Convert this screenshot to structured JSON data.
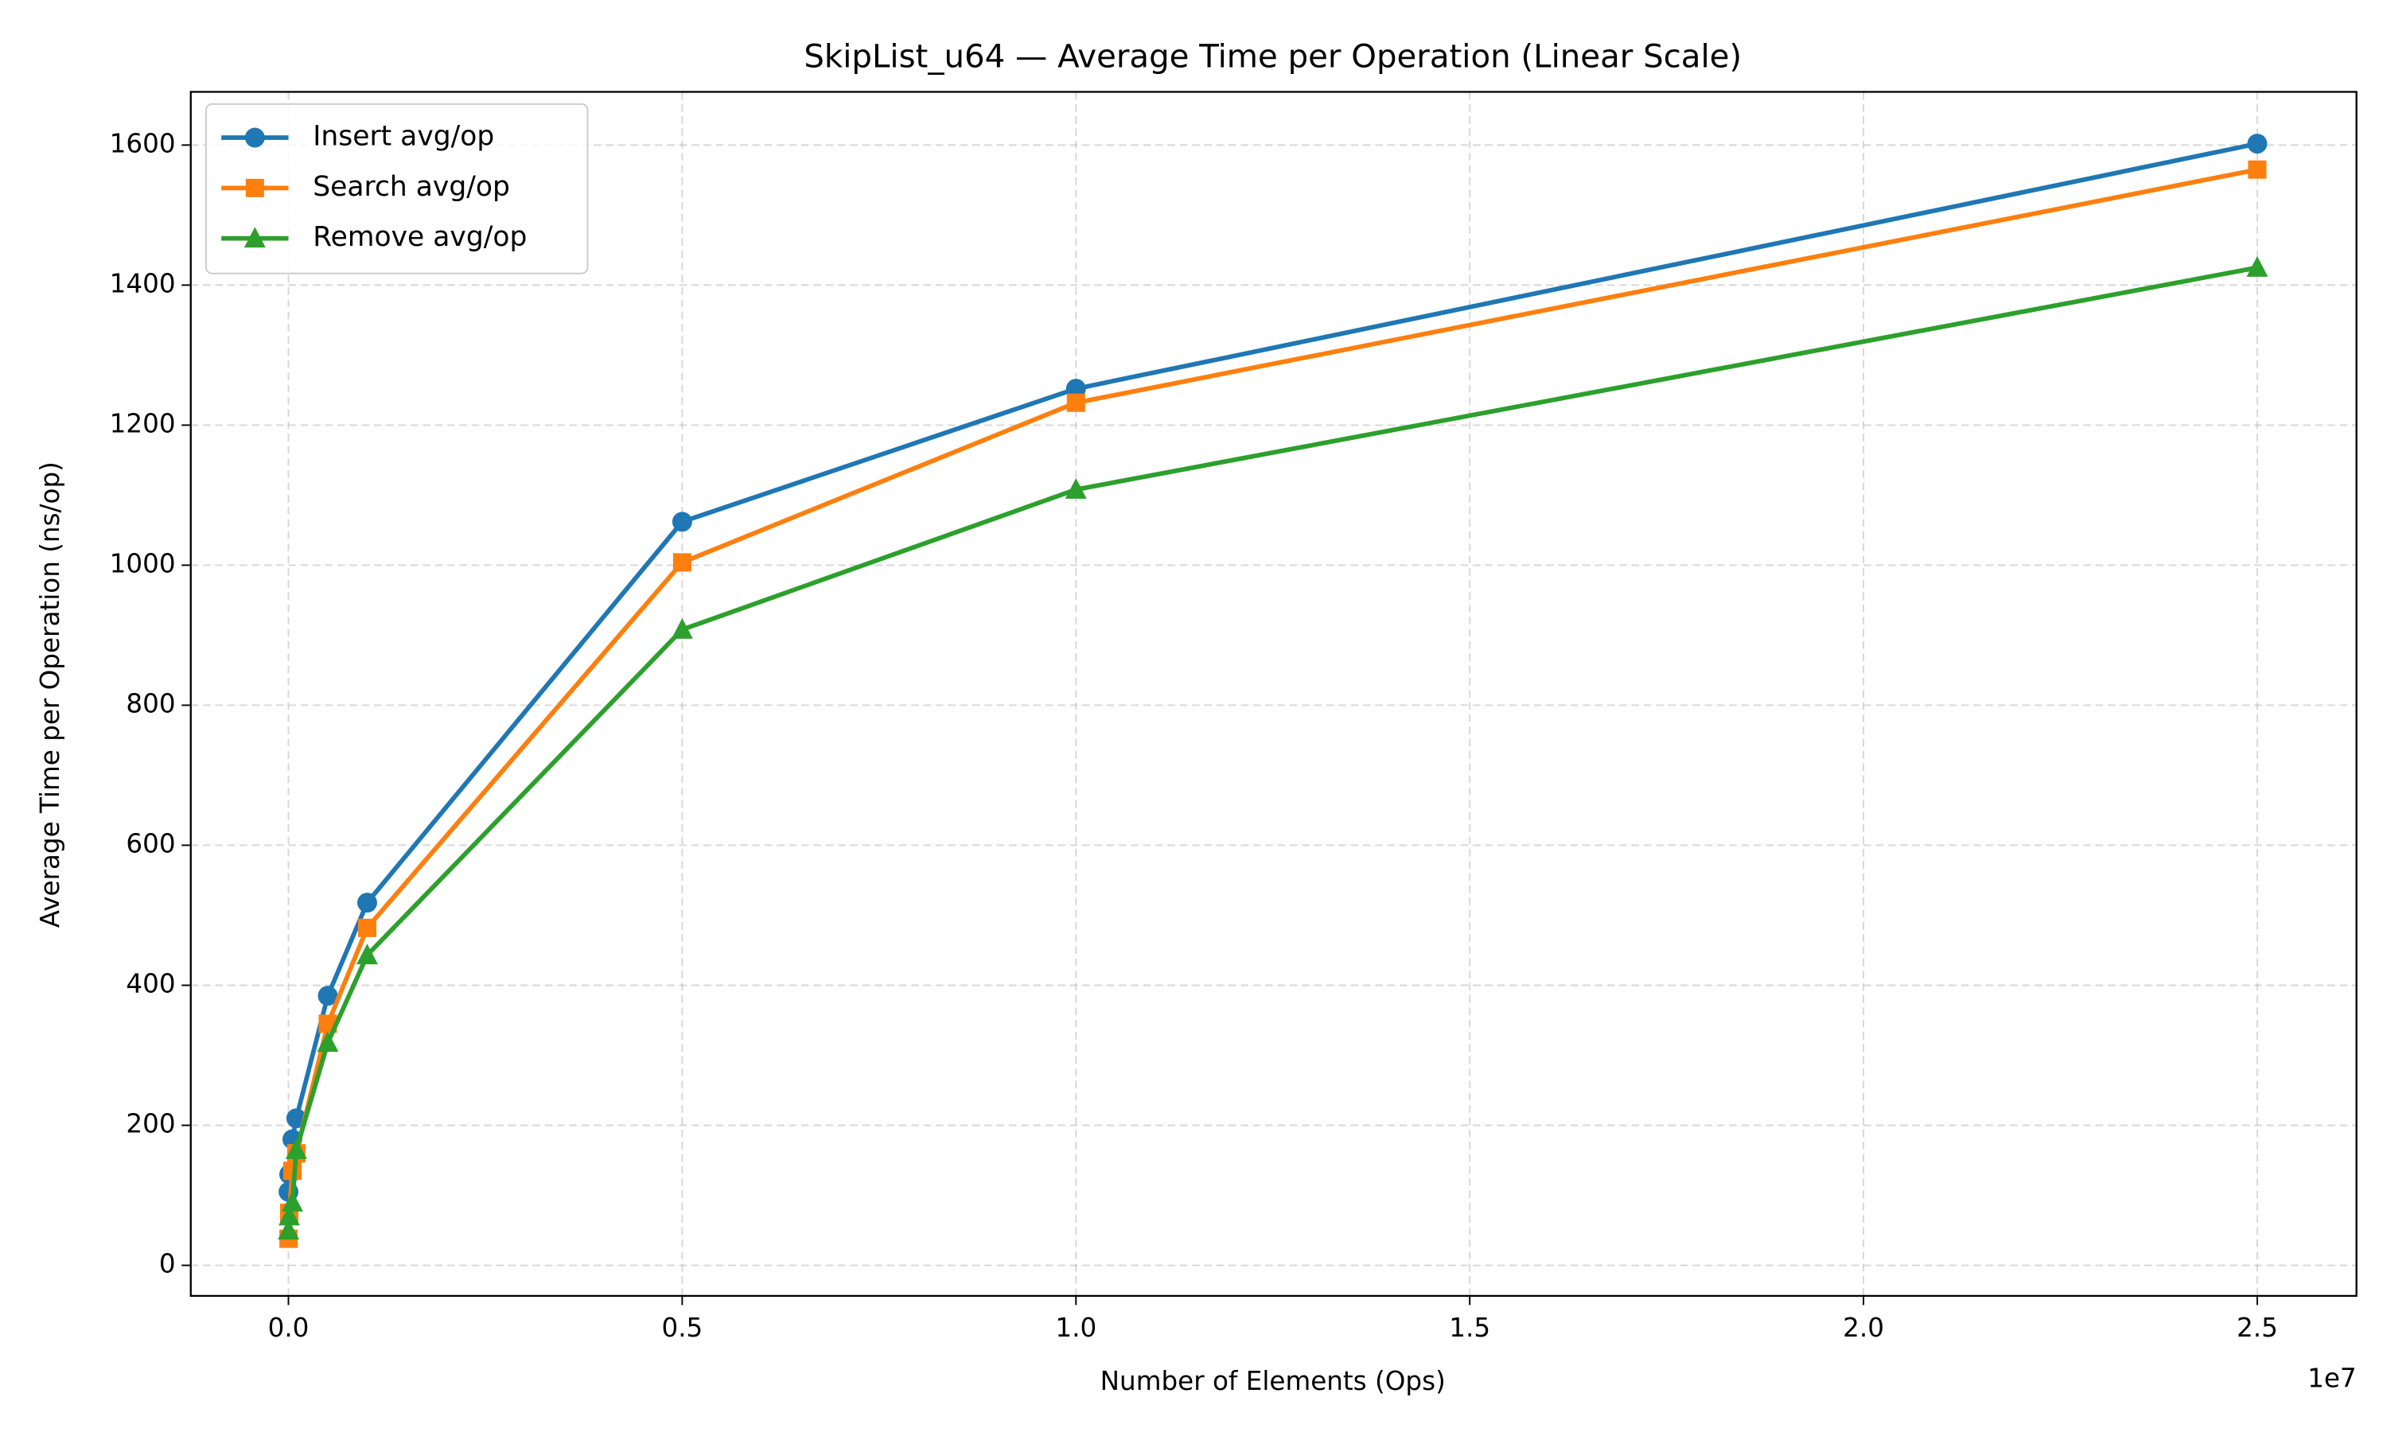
{
  "chart_data": {
    "type": "line",
    "title": "SkipList_u64 — Average Time per Operation (Linear Scale)",
    "x_label": "Number of Elements (Ops)",
    "y_label": "Average Time per Operation (ns/op)",
    "x_offset_label": "1e7",
    "x": [
      1000,
      10000,
      50000,
      100000,
      500000,
      1000000,
      5000000,
      10000000,
      25000000
    ],
    "series": [
      {
        "name": "Insert avg/op",
        "color": "#1f77b4",
        "marker": "circle",
        "values": [
          105,
          130,
          180,
          210,
          385,
          518,
          1062,
          1252,
          1602
        ]
      },
      {
        "name": "Search avg/op",
        "color": "#ff7f0e",
        "marker": "square",
        "values": [
          38,
          75,
          135,
          160,
          345,
          482,
          1004,
          1232,
          1565
        ]
      },
      {
        "name": "Remove avg/op",
        "color": "#2ca02c",
        "marker": "triangle",
        "values": [
          50,
          70,
          90,
          165,
          318,
          443,
          908,
          1108,
          1425
        ]
      }
    ],
    "xlim": [
      -1240000,
      26260000
    ],
    "ylim": [
      -43.6,
      1676
    ],
    "xticks": [
      {
        "value": 0,
        "label": "0.0"
      },
      {
        "value": 5000000,
        "label": "0.5"
      },
      {
        "value": 10000000,
        "label": "1.0"
      },
      {
        "value": 15000000,
        "label": "1.5"
      },
      {
        "value": 20000000,
        "label": "2.0"
      },
      {
        "value": 25000000,
        "label": "2.5"
      }
    ],
    "yticks": [
      0,
      200,
      400,
      600,
      800,
      1000,
      1200,
      1400,
      1600
    ],
    "grid": true,
    "legend": "upper left"
  }
}
